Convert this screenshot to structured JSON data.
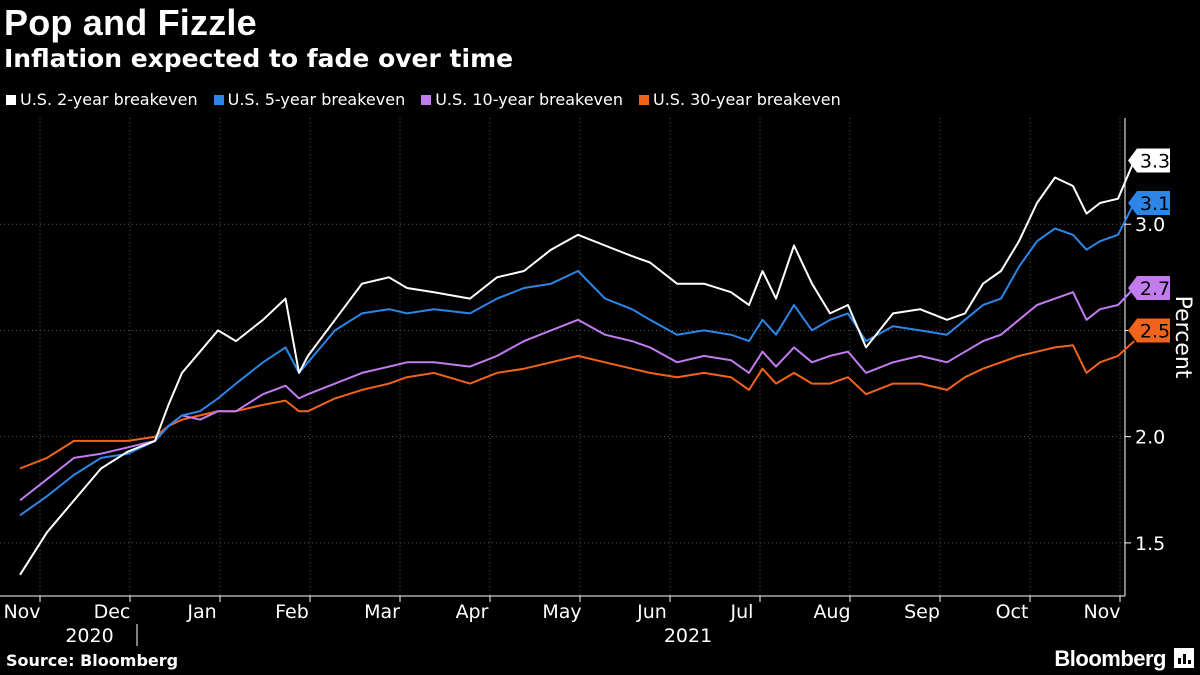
{
  "chart_data": {
    "type": "line",
    "title": "Pop and Fizzle",
    "subtitle": "Inflation expected to fade over time",
    "ylabel": "Percent",
    "ylim": [
      1.25,
      3.5
    ],
    "yticks": [
      {
        "value": 1.5,
        "label": "1.5"
      },
      {
        "value": 2.0,
        "label": "2.0"
      },
      {
        "value": 2.5,
        "label": "2.5"
      },
      {
        "value": 3.0,
        "label": "3.0"
      }
    ],
    "xlim": [
      0,
      12.5
    ],
    "xticks": [
      {
        "value": 0,
        "label": "Nov"
      },
      {
        "value": 1,
        "label": "Dec"
      },
      {
        "value": 2,
        "label": "Jan"
      },
      {
        "value": 3,
        "label": "Feb"
      },
      {
        "value": 4,
        "label": "Mar"
      },
      {
        "value": 5,
        "label": "Apr"
      },
      {
        "value": 6,
        "label": "May"
      },
      {
        "value": 7,
        "label": "Jun"
      },
      {
        "value": 8,
        "label": "Jul"
      },
      {
        "value": 9,
        "label": "Aug"
      },
      {
        "value": 10,
        "label": "Sep"
      },
      {
        "value": 11,
        "label": "Oct"
      },
      {
        "value": 12,
        "label": "Nov"
      }
    ],
    "years": [
      {
        "value": 0.75,
        "label": "2020"
      },
      {
        "value": 7.4,
        "label": "2021"
      }
    ],
    "year_separator": 1.5,
    "series": [
      {
        "name": "U.S. 2-year breakeven",
        "color": "#ffffff",
        "end_label": "3.3",
        "x": [
          0,
          0.3,
          0.6,
          0.9,
          1.2,
          1.5,
          1.65,
          1.8,
          2.0,
          2.2,
          2.4,
          2.7,
          2.95,
          3.1,
          3.2,
          3.5,
          3.8,
          4.1,
          4.3,
          4.6,
          5.0,
          5.3,
          5.6,
          5.9,
          6.2,
          6.5,
          6.8,
          7.0,
          7.3,
          7.6,
          7.9,
          8.1,
          8.25,
          8.4,
          8.6,
          8.8,
          9.0,
          9.2,
          9.4,
          9.7,
          10.0,
          10.3,
          10.5,
          10.7,
          10.9,
          11.1,
          11.3,
          11.5,
          11.7,
          11.85,
          12.0,
          12.2,
          12.38
        ],
        "values": [
          1.35,
          1.55,
          1.7,
          1.85,
          1.93,
          1.98,
          2.15,
          2.3,
          2.4,
          2.5,
          2.45,
          2.55,
          2.65,
          2.3,
          2.38,
          2.55,
          2.72,
          2.75,
          2.7,
          2.68,
          2.65,
          2.75,
          2.78,
          2.88,
          2.95,
          2.9,
          2.85,
          2.82,
          2.72,
          2.72,
          2.68,
          2.62,
          2.78,
          2.65,
          2.9,
          2.72,
          2.58,
          2.62,
          2.42,
          2.58,
          2.6,
          2.55,
          2.58,
          2.72,
          2.78,
          2.92,
          3.1,
          3.22,
          3.18,
          3.05,
          3.1,
          3.12,
          3.3
        ]
      },
      {
        "name": "U.S. 5-year breakeven",
        "color": "#2b86e8",
        "end_label": "3.1",
        "x": [
          0,
          0.3,
          0.6,
          0.9,
          1.2,
          1.5,
          1.65,
          1.8,
          2.0,
          2.2,
          2.4,
          2.7,
          2.95,
          3.1,
          3.2,
          3.5,
          3.8,
          4.1,
          4.3,
          4.6,
          5.0,
          5.3,
          5.6,
          5.9,
          6.2,
          6.5,
          6.8,
          7.0,
          7.3,
          7.6,
          7.9,
          8.1,
          8.25,
          8.4,
          8.6,
          8.8,
          9.0,
          9.2,
          9.4,
          9.7,
          10.0,
          10.3,
          10.5,
          10.7,
          10.9,
          11.1,
          11.3,
          11.5,
          11.7,
          11.85,
          12.0,
          12.2,
          12.38
        ],
        "values": [
          1.63,
          1.72,
          1.82,
          1.9,
          1.92,
          1.98,
          2.05,
          2.1,
          2.12,
          2.18,
          2.25,
          2.35,
          2.42,
          2.3,
          2.35,
          2.5,
          2.58,
          2.6,
          2.58,
          2.6,
          2.58,
          2.65,
          2.7,
          2.72,
          2.78,
          2.65,
          2.6,
          2.55,
          2.48,
          2.5,
          2.48,
          2.45,
          2.55,
          2.48,
          2.62,
          2.5,
          2.55,
          2.58,
          2.45,
          2.52,
          2.5,
          2.48,
          2.55,
          2.62,
          2.65,
          2.8,
          2.92,
          2.98,
          2.95,
          2.88,
          2.92,
          2.95,
          3.1
        ]
      },
      {
        "name": "U.S. 10-year breakeven",
        "color": "#c27cf0",
        "end_label": "2.7",
        "x": [
          0,
          0.3,
          0.6,
          0.9,
          1.2,
          1.5,
          1.65,
          1.8,
          2.0,
          2.2,
          2.4,
          2.7,
          2.95,
          3.1,
          3.2,
          3.5,
          3.8,
          4.1,
          4.3,
          4.6,
          5.0,
          5.3,
          5.6,
          5.9,
          6.2,
          6.5,
          6.8,
          7.0,
          7.3,
          7.6,
          7.9,
          8.1,
          8.25,
          8.4,
          8.6,
          8.8,
          9.0,
          9.2,
          9.4,
          9.7,
          10.0,
          10.3,
          10.5,
          10.7,
          10.9,
          11.1,
          11.3,
          11.5,
          11.7,
          11.85,
          12.0,
          12.2,
          12.38
        ],
        "values": [
          1.7,
          1.8,
          1.9,
          1.92,
          1.95,
          1.98,
          2.05,
          2.1,
          2.08,
          2.12,
          2.12,
          2.2,
          2.24,
          2.18,
          2.2,
          2.25,
          2.3,
          2.33,
          2.35,
          2.35,
          2.33,
          2.38,
          2.45,
          2.5,
          2.55,
          2.48,
          2.45,
          2.42,
          2.35,
          2.38,
          2.36,
          2.3,
          2.4,
          2.33,
          2.42,
          2.35,
          2.38,
          2.4,
          2.3,
          2.35,
          2.38,
          2.35,
          2.4,
          2.45,
          2.48,
          2.55,
          2.62,
          2.65,
          2.68,
          2.55,
          2.6,
          2.62,
          2.7
        ]
      },
      {
        "name": "U.S. 30-year breakeven",
        "color": "#f2631c",
        "end_label": "2.5",
        "x": [
          0,
          0.3,
          0.6,
          0.9,
          1.2,
          1.5,
          1.65,
          1.8,
          2.0,
          2.2,
          2.4,
          2.7,
          2.95,
          3.1,
          3.2,
          3.5,
          3.8,
          4.1,
          4.3,
          4.6,
          5.0,
          5.3,
          5.6,
          5.9,
          6.2,
          6.5,
          6.8,
          7.0,
          7.3,
          7.6,
          7.9,
          8.1,
          8.25,
          8.4,
          8.6,
          8.8,
          9.0,
          9.2,
          9.4,
          9.7,
          10.0,
          10.3,
          10.5,
          10.7,
          10.9,
          11.1,
          11.3,
          11.5,
          11.7,
          11.85,
          12.0,
          12.2,
          12.38
        ],
        "values": [
          1.85,
          1.9,
          1.98,
          1.98,
          1.98,
          2.0,
          2.05,
          2.08,
          2.1,
          2.12,
          2.12,
          2.15,
          2.17,
          2.12,
          2.12,
          2.18,
          2.22,
          2.25,
          2.28,
          2.3,
          2.25,
          2.3,
          2.32,
          2.35,
          2.38,
          2.35,
          2.32,
          2.3,
          2.28,
          2.3,
          2.28,
          2.22,
          2.32,
          2.25,
          2.3,
          2.25,
          2.25,
          2.28,
          2.2,
          2.25,
          2.25,
          2.22,
          2.28,
          2.32,
          2.35,
          2.38,
          2.4,
          2.42,
          2.43,
          2.3,
          2.35,
          2.38,
          2.45
        ]
      }
    ]
  },
  "source": "Source: Bloomberg",
  "brand": "Bloomberg"
}
